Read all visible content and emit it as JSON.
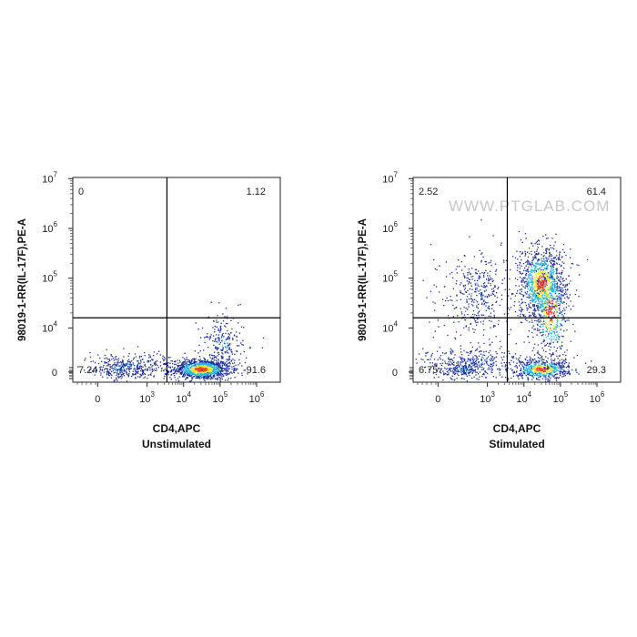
{
  "chart_data": [
    {
      "type": "scatter",
      "subtitle": "Unstimulated",
      "xlabel": "CD4,APC",
      "ylabel": "98019-1-RR(IL-17F),PE-A",
      "x_ticks": [
        {
          "base": "0",
          "exp": ""
        },
        {
          "base": "10",
          "exp": "3"
        },
        {
          "base": "10",
          "exp": "4"
        },
        {
          "base": "10",
          "exp": "5"
        },
        {
          "base": "10",
          "exp": "6"
        }
      ],
      "y_ticks": [
        {
          "base": "0",
          "exp": ""
        },
        {
          "base": "10",
          "exp": "4"
        },
        {
          "base": "10",
          "exp": "5"
        },
        {
          "base": "10",
          "exp": "6"
        },
        {
          "base": "10",
          "exp": "7"
        }
      ],
      "quadrant_gate": {
        "x": 3500,
        "y": 16000
      },
      "quadrant_percentages": {
        "upper_left": "0",
        "upper_right": "1.12",
        "lower_left": "7.24",
        "lower_right": "91.6"
      },
      "populations": [
        {
          "name": "CD4+ IL-17F-",
          "center_x": 30000,
          "center_y": 0,
          "density": "high"
        },
        {
          "name": "CD4- IL-17F-",
          "center_x": 500,
          "center_y": 0,
          "density": "low"
        }
      ]
    },
    {
      "type": "scatter",
      "subtitle": "Stimulated",
      "xlabel": "CD4,APC",
      "ylabel": "98019-1-RR(IL-17F),PE-A",
      "watermark": "WWW.PTGLAB.COM",
      "x_ticks": [
        {
          "base": "0",
          "exp": ""
        },
        {
          "base": "10",
          "exp": "3"
        },
        {
          "base": "10",
          "exp": "4"
        },
        {
          "base": "10",
          "exp": "5"
        },
        {
          "base": "10",
          "exp": "6"
        }
      ],
      "y_ticks": [
        {
          "base": "0",
          "exp": ""
        },
        {
          "base": "10",
          "exp": "4"
        },
        {
          "base": "10",
          "exp": "5"
        },
        {
          "base": "10",
          "exp": "6"
        },
        {
          "base": "10",
          "exp": "7"
        }
      ],
      "quadrant_gate": {
        "x": 3500,
        "y": 16000
      },
      "quadrant_percentages": {
        "upper_left": "2.52",
        "upper_right": "61.4",
        "lower_left": "6.75",
        "lower_right": "29.3"
      },
      "populations": [
        {
          "name": "CD4+ IL-17F+",
          "center_x": 30000,
          "center_y": 80000,
          "density": "high"
        },
        {
          "name": "CD4+ IL-17F-",
          "center_x": 30000,
          "center_y": 0,
          "density": "medium"
        },
        {
          "name": "CD4- IL-17F+",
          "center_x": 800,
          "center_y": 60000,
          "density": "low"
        },
        {
          "name": "CD4- IL-17F-",
          "center_x": 500,
          "center_y": 0,
          "density": "low"
        }
      ]
    }
  ],
  "colors": {
    "axis": "#222222",
    "gate": "#000000",
    "watermark": "#c8c8c8",
    "density_low": "#1a2a9a",
    "density_mid": "#22b4e6",
    "density_high": "#e8e81e",
    "density_peak": "#ff4020"
  }
}
